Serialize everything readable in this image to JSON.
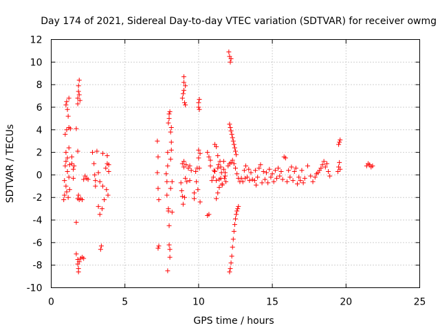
{
  "chart_data": {
    "type": "scatter",
    "title": "Day 174 of 2021, Sidereal Day-to-day VTEC variation (SDTVAR) for receiver owmg",
    "xlabel": "GPS time / hours",
    "ylabel": "SDTVAR / TECUs",
    "xlim": [
      0,
      25
    ],
    "ylim": [
      -10,
      12
    ],
    "xticks": [
      0,
      5,
      10,
      15,
      20,
      25
    ],
    "yticks": [
      -10,
      -8,
      -6,
      -4,
      -2,
      0,
      2,
      4,
      6,
      8,
      10,
      12
    ],
    "grid": true,
    "marker": "+",
    "color": "#ff0000",
    "series": [
      {
        "name": "SDTVAR",
        "points": [
          [
            0.85,
            -2.2
          ],
          [
            0.9,
            -1.8
          ],
          [
            0.9,
            -0.5
          ],
          [
            0.95,
            0.8
          ],
          [
            1.0,
            1.2
          ],
          [
            1.0,
            -1.0
          ],
          [
            1.0,
            2.0
          ],
          [
            1.05,
            -1.5
          ],
          [
            1.1,
            0.3
          ],
          [
            1.1,
            1.5
          ],
          [
            1.15,
            -2.0
          ],
          [
            1.2,
            2.4
          ],
          [
            1.2,
            -0.2
          ],
          [
            1.25,
            0.9
          ],
          [
            1.25,
            -1.3
          ],
          [
            0.95,
            3.6
          ],
          [
            1.05,
            4.0
          ],
          [
            1.0,
            6.2
          ],
          [
            1.05,
            6.5
          ],
          [
            1.1,
            5.8
          ],
          [
            1.15,
            5.2
          ],
          [
            1.2,
            6.8
          ],
          [
            1.2,
            4.2
          ],
          [
            1.3,
            4.1
          ],
          [
            1.4,
            1.6
          ],
          [
            1.4,
            1.0
          ],
          [
            1.5,
            0.5
          ],
          [
            1.5,
            -0.3
          ],
          [
            1.55,
            0.8
          ],
          [
            1.7,
            -4.2
          ],
          [
            1.8,
            2.1
          ],
          [
            1.8,
            -2.1
          ],
          [
            1.85,
            -1.8
          ],
          [
            1.9,
            -2.2
          ],
          [
            2.0,
            -2.1
          ],
          [
            2.1,
            -2.2
          ],
          [
            1.8,
            6.3
          ],
          [
            1.8,
            6.8
          ],
          [
            1.85,
            7.4
          ],
          [
            1.85,
            7.9
          ],
          [
            1.9,
            8.4
          ],
          [
            1.9,
            7.1
          ],
          [
            1.95,
            6.6
          ],
          [
            1.7,
            4.1
          ],
          [
            1.7,
            -7.0
          ],
          [
            1.8,
            -7.5
          ],
          [
            1.8,
            -7.9
          ],
          [
            1.85,
            -8.3
          ],
          [
            1.85,
            -8.6
          ],
          [
            1.9,
            -7.7
          ],
          [
            2.0,
            -7.4
          ],
          [
            2.1,
            -7.3
          ],
          [
            2.2,
            -7.4
          ],
          [
            2.2,
            -0.4
          ],
          [
            2.3,
            -0.1
          ],
          [
            2.4,
            -0.3
          ],
          [
            2.5,
            -0.4
          ],
          [
            2.8,
            2.0
          ],
          [
            2.9,
            1.0
          ],
          [
            2.95,
            0.0
          ],
          [
            3.0,
            -0.5
          ],
          [
            3.0,
            -1.0
          ],
          [
            3.1,
            2.1
          ],
          [
            3.2,
            0.2
          ],
          [
            3.2,
            -2.8
          ],
          [
            3.3,
            -0.6
          ],
          [
            3.3,
            -3.5
          ],
          [
            3.35,
            -6.6
          ],
          [
            3.4,
            -6.3
          ],
          [
            3.45,
            -3.0
          ],
          [
            3.5,
            -1.0
          ],
          [
            3.5,
            1.9
          ],
          [
            3.6,
            -2.2
          ],
          [
            3.7,
            0.6
          ],
          [
            3.75,
            -1.3
          ],
          [
            3.8,
            1.0
          ],
          [
            3.8,
            1.7
          ],
          [
            3.85,
            -1.8
          ],
          [
            3.9,
            0.3
          ],
          [
            3.9,
            0.9
          ],
          [
            7.2,
            3.0
          ],
          [
            7.25,
            1.6
          ],
          [
            7.2,
            0.2
          ],
          [
            7.25,
            -1.2
          ],
          [
            7.3,
            -2.2
          ],
          [
            7.3,
            -6.3
          ],
          [
            7.25,
            -6.5
          ],
          [
            7.9,
            -8.5
          ],
          [
            7.8,
            0.1
          ],
          [
            7.85,
            -0.6
          ],
          [
            7.85,
            -1.8
          ],
          [
            7.9,
            0.8
          ],
          [
            7.9,
            2.0
          ],
          [
            7.95,
            -3.0
          ],
          [
            7.95,
            -3.2
          ],
          [
            8.0,
            -4.5
          ],
          [
            8.0,
            -6.2
          ],
          [
            8.05,
            -6.6
          ],
          [
            8.05,
            -7.3
          ],
          [
            8.1,
            -1.2
          ],
          [
            8.1,
            1.4
          ],
          [
            8.15,
            2.2
          ],
          [
            8.15,
            2.9
          ],
          [
            7.95,
            4.6
          ],
          [
            8.0,
            5.0
          ],
          [
            8.0,
            5.4
          ],
          [
            8.05,
            5.6
          ],
          [
            8.1,
            3.8
          ],
          [
            8.15,
            4.2
          ],
          [
            8.2,
            -3.3
          ],
          [
            8.2,
            -0.6
          ],
          [
            8.8,
            -0.7
          ],
          [
            8.85,
            -1.4
          ],
          [
            8.9,
            1.0
          ],
          [
            8.9,
            -1.9
          ],
          [
            8.95,
            -2.6
          ],
          [
            9.0,
            0.7
          ],
          [
            9.0,
            1.2
          ],
          [
            9.05,
            -2.0
          ],
          [
            9.1,
            -0.3
          ],
          [
            9.15,
            0.9
          ],
          [
            9.2,
            -0.6
          ],
          [
            9.3,
            0.6
          ],
          [
            9.4,
            -0.5
          ],
          [
            9.4,
            0.8
          ],
          [
            9.5,
            0.4
          ],
          [
            8.9,
            6.8
          ],
          [
            8.95,
            7.2
          ],
          [
            9.0,
            7.5
          ],
          [
            9.0,
            8.2
          ],
          [
            9.0,
            8.7
          ],
          [
            9.05,
            6.4
          ],
          [
            9.1,
            6.2
          ],
          [
            9.1,
            7.9
          ],
          [
            9.7,
            -2.1
          ],
          [
            9.7,
            -1.6
          ],
          [
            9.8,
            0.3
          ],
          [
            9.85,
            -0.6
          ],
          [
            9.9,
            0.6
          ],
          [
            9.95,
            -1.3
          ],
          [
            10.0,
            1.5
          ],
          [
            10.0,
            2.2
          ],
          [
            10.05,
            0.6
          ],
          [
            10.1,
            -2.4
          ],
          [
            10.1,
            1.9
          ],
          [
            10.0,
            6.4
          ],
          [
            10.0,
            6.0
          ],
          [
            10.05,
            5.8
          ],
          [
            10.05,
            6.7
          ],
          [
            10.6,
            -3.6
          ],
          [
            10.7,
            -3.5
          ],
          [
            10.6,
            2.0
          ],
          [
            10.7,
            1.6
          ],
          [
            10.8,
            1.3
          ],
          [
            10.8,
            0.8
          ],
          [
            10.9,
            -0.5
          ],
          [
            11.0,
            -0.2
          ],
          [
            11.05,
            0.4
          ],
          [
            11.1,
            2.7
          ],
          [
            11.2,
            2.5
          ],
          [
            11.2,
            -2.1
          ],
          [
            11.3,
            1.7
          ],
          [
            11.3,
            -1.6
          ],
          [
            11.35,
            0.9
          ],
          [
            11.4,
            -1.1
          ],
          [
            11.45,
            1.2
          ],
          [
            11.5,
            -0.3
          ],
          [
            11.55,
            0.2
          ],
          [
            11.6,
            -0.8
          ],
          [
            11.7,
            0.5
          ],
          [
            11.75,
            -0.3
          ],
          [
            11.8,
            0.2
          ],
          [
            11.85,
            -0.6
          ],
          [
            11.1,
            0.3
          ],
          [
            11.2,
            -0.5
          ],
          [
            11.3,
            0.6
          ],
          [
            11.4,
            -0.4
          ],
          [
            11.5,
            0.7
          ],
          [
            11.6,
            -0.9
          ],
          [
            11.7,
            1.2
          ],
          [
            11.8,
            -0.1
          ],
          [
            12.0,
            0.8
          ],
          [
            12.1,
            1.0
          ],
          [
            12.2,
            1.1
          ],
          [
            12.3,
            1.3
          ],
          [
            12.4,
            1.0
          ],
          [
            12.5,
            0.6
          ],
          [
            12.6,
            0.1
          ],
          [
            12.7,
            -0.3
          ],
          [
            12.8,
            -0.6
          ],
          [
            12.9,
            -0.3
          ],
          [
            12.05,
            10.9
          ],
          [
            12.1,
            10.5
          ],
          [
            12.15,
            10.0
          ],
          [
            12.2,
            10.3
          ],
          [
            12.1,
            4.5
          ],
          [
            12.15,
            4.2
          ],
          [
            12.2,
            3.9
          ],
          [
            12.25,
            3.6
          ],
          [
            12.3,
            3.3
          ],
          [
            12.35,
            3.0
          ],
          [
            12.4,
            2.7
          ],
          [
            12.45,
            2.4
          ],
          [
            12.5,
            2.1
          ],
          [
            12.55,
            1.8
          ],
          [
            12.1,
            -8.6
          ],
          [
            12.15,
            -8.3
          ],
          [
            12.2,
            -7.8
          ],
          [
            12.25,
            -7.2
          ],
          [
            12.3,
            -6.4
          ],
          [
            12.35,
            -5.7
          ],
          [
            12.4,
            -5.0
          ],
          [
            12.45,
            -4.4
          ],
          [
            12.5,
            -3.9
          ],
          [
            12.55,
            -3.5
          ],
          [
            12.6,
            -3.2
          ],
          [
            12.65,
            -3.0
          ],
          [
            12.7,
            -2.8
          ],
          [
            13.0,
            -0.6
          ],
          [
            13.1,
            0.4
          ],
          [
            13.15,
            -0.3
          ],
          [
            13.2,
            0.8
          ],
          [
            13.3,
            -0.2
          ],
          [
            13.4,
            0.5
          ],
          [
            13.45,
            -0.5
          ],
          [
            13.55,
            0.2
          ],
          [
            13.65,
            -0.4
          ],
          [
            13.8,
            -0.5
          ],
          [
            13.85,
            0.4
          ],
          [
            13.9,
            -0.9
          ],
          [
            14.0,
            -0.2
          ],
          [
            14.1,
            0.6
          ],
          [
            14.2,
            0.9
          ],
          [
            14.3,
            -0.7
          ],
          [
            14.4,
            0.3
          ],
          [
            14.5,
            -0.4
          ],
          [
            14.6,
            0.2
          ],
          [
            14.7,
            -0.7
          ],
          [
            14.8,
            0.5
          ],
          [
            14.9,
            -0.2
          ],
          [
            15.0,
            0.1
          ],
          [
            15.1,
            -0.6
          ],
          [
            15.2,
            0.4
          ],
          [
            15.3,
            -0.3
          ],
          [
            15.4,
            0.6
          ],
          [
            15.5,
            -0.1
          ],
          [
            15.6,
            0.3
          ],
          [
            15.7,
            -0.4
          ],
          [
            15.8,
            1.6
          ],
          [
            15.9,
            1.5
          ],
          [
            16.0,
            -0.6
          ],
          [
            16.1,
            0.4
          ],
          [
            16.2,
            -0.2
          ],
          [
            16.3,
            0.7
          ],
          [
            16.4,
            -0.5
          ],
          [
            16.5,
            0.3
          ],
          [
            16.6,
            0.6
          ],
          [
            16.7,
            -0.8
          ],
          [
            16.8,
            -0.2
          ],
          [
            16.9,
            -0.5
          ],
          [
            17.0,
            0.4
          ],
          [
            17.1,
            -0.7
          ],
          [
            17.2,
            -0.3
          ],
          [
            17.4,
            0.8
          ],
          [
            17.6,
            -0.1
          ],
          [
            17.75,
            -0.6
          ],
          [
            17.9,
            -0.2
          ],
          [
            18.0,
            0.1
          ],
          [
            18.1,
            0.2
          ],
          [
            18.2,
            0.4
          ],
          [
            18.3,
            0.6
          ],
          [
            18.4,
            0.9
          ],
          [
            18.5,
            1.2
          ],
          [
            18.6,
            0.7
          ],
          [
            18.7,
            1.0
          ],
          [
            18.8,
            0.3
          ],
          [
            18.9,
            -0.1
          ],
          [
            19.5,
            2.7
          ],
          [
            19.55,
            2.9
          ],
          [
            19.6,
            3.1
          ],
          [
            19.45,
            0.3
          ],
          [
            19.5,
            0.7
          ],
          [
            19.55,
            1.1
          ],
          [
            19.6,
            0.5
          ],
          [
            21.4,
            0.8
          ],
          [
            21.5,
            1.0
          ],
          [
            21.6,
            0.9
          ],
          [
            21.7,
            0.7
          ],
          [
            21.8,
            0.8
          ]
        ]
      }
    ]
  }
}
